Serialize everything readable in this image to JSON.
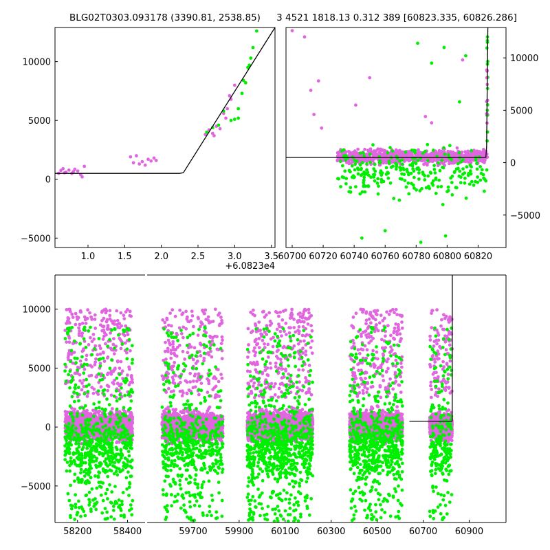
{
  "titles": {
    "left": "BLG02T0303.093178 (3390.81, 2538.85)",
    "right": "3 4521 1818.13 0.312 389 [60823.335, 60826.286]"
  },
  "colors": {
    "magenta": "#e066e0",
    "green": "#00ee00",
    "model": "#000000"
  },
  "chart_data": [
    {
      "name": "zoom-plot",
      "type": "scatter",
      "xlim": [
        0.55,
        3.55
      ],
      "ylim": [
        -5800,
        12900
      ],
      "xticks": [
        "1.0",
        "1.5",
        "2.0",
        "2.5",
        "3.0",
        "3.5"
      ],
      "xtick_values": [
        1.0,
        1.5,
        2.0,
        2.5,
        3.0,
        3.5
      ],
      "yticks": [
        "−5000",
        "0",
        "5000",
        "10000"
      ],
      "ytick_values": [
        -5000,
        0,
        5000,
        10000
      ],
      "x_offset_label": "+6.0823e4",
      "model_line": {
        "x": [
          0.55,
          2.25,
          2.3,
          3.55
        ],
        "y": [
          500,
          500,
          560,
          12900
        ]
      },
      "magenta_points": [
        [
          0.6,
          500
        ],
        [
          0.63,
          750
        ],
        [
          0.66,
          900
        ],
        [
          0.7,
          600
        ],
        [
          0.74,
          780
        ],
        [
          0.78,
          500
        ],
        [
          0.82,
          850
        ],
        [
          0.86,
          700
        ],
        [
          0.9,
          400
        ],
        [
          0.92,
          200
        ],
        [
          0.95,
          1100
        ],
        [
          0.68,
          550
        ],
        [
          0.8,
          650
        ],
        [
          1.58,
          1900
        ],
        [
          1.62,
          1400
        ],
        [
          1.66,
          2000
        ],
        [
          1.7,
          1300
        ],
        [
          1.74,
          1500
        ],
        [
          1.78,
          1200
        ],
        [
          1.82,
          1700
        ],
        [
          1.86,
          1550
        ],
        [
          1.9,
          1800
        ],
        [
          1.93,
          1600
        ],
        [
          2.6,
          3800
        ],
        [
          2.65,
          4200
        ],
        [
          2.7,
          3900
        ],
        [
          2.75,
          4500
        ],
        [
          2.8,
          4300
        ],
        [
          2.85,
          5600
        ],
        [
          2.9,
          6000
        ],
        [
          2.95,
          6800
        ],
        [
          3.0,
          8000
        ],
        [
          2.72,
          3700
        ],
        [
          2.88,
          5200
        ],
        [
          2.93,
          7100
        ]
      ],
      "green_points": [
        [
          2.62,
          4000
        ],
        [
          2.7,
          4400
        ],
        [
          2.78,
          4600
        ],
        [
          2.85,
          5800
        ],
        [
          2.95,
          5000
        ],
        [
          3.0,
          5100
        ],
        [
          3.05,
          6000
        ],
        [
          3.1,
          7300
        ],
        [
          3.15,
          8200
        ],
        [
          3.2,
          9700
        ],
        [
          3.25,
          11200
        ],
        [
          3.3,
          12600
        ],
        [
          3.05,
          5200
        ],
        [
          3.12,
          8400
        ],
        [
          3.18,
          9500
        ],
        [
          3.22,
          10300
        ]
      ]
    },
    {
      "name": "recent-plot",
      "type": "scatter",
      "xlim": [
        60696,
        60838
      ],
      "ylim": [
        -8100,
        12900
      ],
      "xticks": [
        "60700",
        "60720",
        "60740",
        "60760",
        "60780",
        "60800",
        "60820"
      ],
      "xtick_values": [
        60700,
        60720,
        60740,
        60760,
        60780,
        60800,
        60820
      ],
      "yticks": [
        "−5000",
        "0",
        "5000",
        "10000"
      ],
      "ytick_values": [
        -5000,
        0,
        5000,
        10000
      ],
      "model_line": {
        "x": [
          60696,
          60825,
          60825.5,
          60826.3
        ],
        "y": [
          500,
          500,
          1500,
          12900
        ]
      },
      "cluster": {
        "x_range": [
          60729,
          60826
        ],
        "magenta_center": 550,
        "magenta_spread": 600,
        "green_center": -900,
        "green_spread": 1700,
        "magenta_count": 900,
        "green_count": 260
      },
      "outliers_magenta": [
        [
          60708,
          12000
        ],
        [
          60712,
          6900
        ],
        [
          60717,
          7800
        ],
        [
          60714,
          4600
        ],
        [
          60719,
          3300
        ],
        [
          60741,
          5500
        ],
        [
          60750,
          8100
        ],
        [
          60786,
          4400
        ],
        [
          60790,
          3800
        ],
        [
          60700,
          12600
        ],
        [
          60810,
          9800
        ]
      ],
      "outliers_green": [
        [
          60781,
          11400
        ],
        [
          60790,
          9500
        ],
        [
          60798,
          11000
        ],
        [
          60808,
          5800
        ],
        [
          60812,
          10200
        ],
        [
          60826,
          12000
        ],
        [
          60826,
          9400
        ],
        [
          60760,
          -6500
        ],
        [
          60745,
          -7200
        ],
        [
          60783,
          -7600
        ],
        [
          60799,
          -7000
        ]
      ]
    },
    {
      "name": "full-lightcurve",
      "type": "scatter",
      "xlim": [
        58110,
        61060
      ],
      "ylim": [
        -8100,
        12900
      ],
      "broken_axis": true,
      "panels": [
        {
          "xlim": [
            58110,
            58470
          ],
          "xticks": [
            "58200",
            "58400"
          ],
          "xtick_values": [
            58200,
            58400
          ]
        },
        {
          "xlim": [
            59500,
            61060
          ],
          "xticks": [
            "59700",
            "59900",
            "60100",
            "60300",
            "60500",
            "60700",
            "60900"
          ],
          "xtick_values": [
            59700,
            59900,
            60100,
            60300,
            60500,
            60700,
            60900
          ]
        }
      ],
      "yticks": [
        "−5000",
        "0",
        "5000",
        "10000"
      ],
      "ytick_values": [
        -5000,
        0,
        5000,
        10000
      ],
      "seasons": [
        {
          "x0": 58150,
          "x1": 58420,
          "magenta": 1800,
          "green": 700
        },
        {
          "x0": 59565,
          "x1": 59830,
          "magenta": 1600,
          "green": 550
        },
        {
          "x0": 59935,
          "x1": 60220,
          "magenta": 2000,
          "green": 800
        },
        {
          "x0": 60380,
          "x1": 60610,
          "magenta": 1600,
          "green": 650
        },
        {
          "x0": 60728,
          "x1": 60826,
          "magenta": 700,
          "green": 230
        }
      ],
      "model_line": {
        "x": [
          60640,
          60826,
          60826.3,
          60826.5
        ],
        "y": [
          500,
          500,
          1500,
          12900
        ]
      }
    }
  ]
}
